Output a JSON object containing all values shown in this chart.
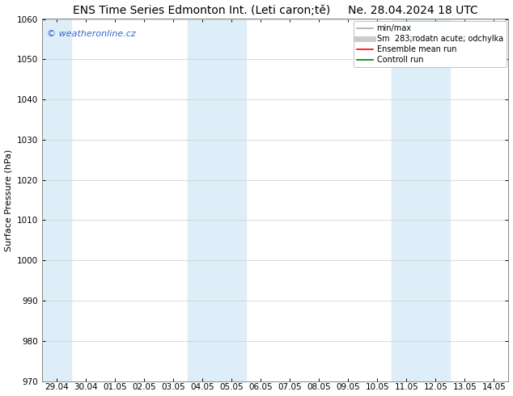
{
  "title": "ENS Time Series Edmonton Int. (Leti caron;tě)",
  "date_str": "Ne. 28.04.2024 18 UTC",
  "ylabel": "Surface Pressure (hPa)",
  "ylim": [
    970,
    1060
  ],
  "yticks": [
    970,
    980,
    990,
    1000,
    1010,
    1020,
    1030,
    1040,
    1050,
    1060
  ],
  "xtick_labels": [
    "29.04",
    "30.04",
    "01.05",
    "02.05",
    "03.05",
    "04.05",
    "05.05",
    "06.05",
    "07.05",
    "08.05",
    "09.05",
    "10.05",
    "11.05",
    "12.05",
    "13.05",
    "14.05"
  ],
  "xtick_positions": [
    0,
    1,
    2,
    3,
    4,
    5,
    6,
    7,
    8,
    9,
    10,
    11,
    12,
    13,
    14,
    15
  ],
  "xlim": [
    -0.5,
    15.5
  ],
  "shaded_bands": [
    {
      "x_start": -0.5,
      "x_end": 0.5,
      "color": "#ddeef8"
    },
    {
      "x_start": 4.5,
      "x_end": 6.5,
      "color": "#ddeef8"
    },
    {
      "x_start": 11.5,
      "x_end": 13.5,
      "color": "#ddeef8"
    }
  ],
  "watermark": "© weatheronline.cz",
  "watermark_color": "#3366cc",
  "legend_entries": [
    {
      "label": "min/max",
      "color": "#aaaaaa",
      "lw": 1.2,
      "style": "solid"
    },
    {
      "label": "Sm  283;rodatn acute; odchylka",
      "color": "#cccccc",
      "lw": 5,
      "style": "solid"
    },
    {
      "label": "Ensemble mean run",
      "color": "#ff0000",
      "lw": 1.2,
      "style": "solid"
    },
    {
      "label": "Controll run",
      "color": "#008000",
      "lw": 1.2,
      "style": "solid"
    }
  ],
  "background_color": "#ffffff",
  "grid_color": "#cccccc",
  "title_fontsize": 10,
  "axis_label_fontsize": 8,
  "tick_fontsize": 7.5,
  "legend_fontsize": 7,
  "watermark_fontsize": 8
}
